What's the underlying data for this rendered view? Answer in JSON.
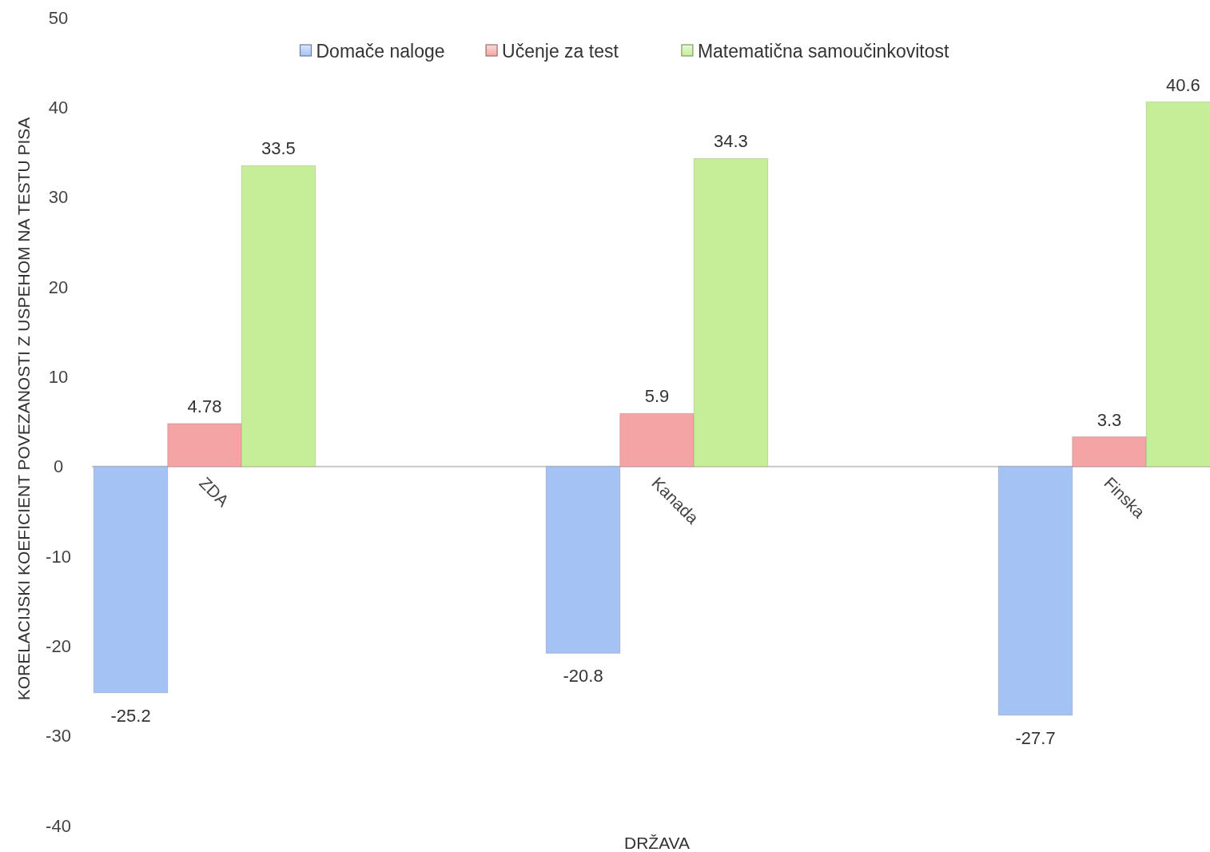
{
  "chart_data": {
    "type": "bar",
    "xlabel": "DRŽAVA",
    "ylabel": "KORELACIJSKI KOEFICIENT POVEZANOSTI Z USPEHOM NA TESTU PISA",
    "categories": [
      "ZDA",
      "Kanada",
      "Finska"
    ],
    "series": [
      {
        "name": "Domače naloge",
        "color": "#a4c2f4",
        "values": [
          -25.2,
          -20.8,
          -27.7
        ]
      },
      {
        "name": "Učenje za test",
        "color": "#f4a4a4",
        "values": [
          4.78,
          5.9,
          3.3
        ]
      },
      {
        "name": "Matematična samoučinkovitost",
        "color": "#c6ee98",
        "values": [
          33.5,
          34.3,
          40.6
        ]
      }
    ],
    "ylim": [
      -40,
      50
    ],
    "yticks": [
      -40,
      -30,
      -20,
      -10,
      0,
      10,
      20,
      30,
      40,
      50
    ],
    "grid": false,
    "legend": "top",
    "data_labels": true
  }
}
